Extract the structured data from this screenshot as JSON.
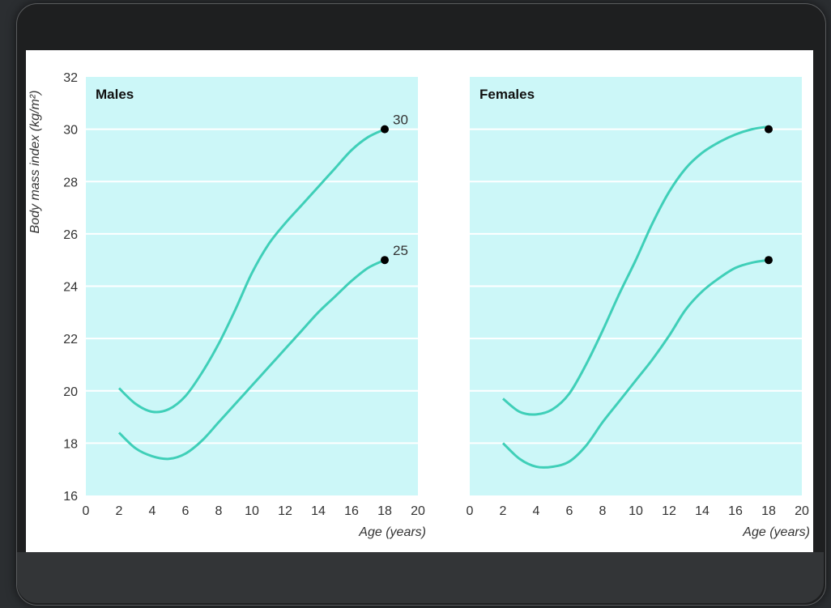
{
  "chart_data": [
    {
      "type": "line",
      "title": "Males",
      "xlabel": "Age (years)",
      "ylabel": "Body mass index (kg/m²)",
      "xlim": [
        0,
        20
      ],
      "ylim": [
        16,
        32
      ],
      "xticks": [
        "0",
        "2",
        "4",
        "6",
        "8",
        "10",
        "12",
        "14",
        "16",
        "18",
        "20"
      ],
      "yticks": [
        "16",
        "18",
        "20",
        "22",
        "24",
        "26",
        "28",
        "30",
        "32"
      ],
      "grid": true,
      "series": [
        {
          "x": [
            2,
            3,
            4,
            5,
            6,
            7,
            8,
            9,
            10,
            11,
            12,
            13,
            14,
            15,
            16,
            17,
            18
          ],
          "values": [
            20.1,
            19.5,
            19.2,
            19.3,
            19.8,
            20.7,
            21.8,
            23.1,
            24.5,
            25.6,
            26.4,
            27.1,
            27.8,
            28.5,
            29.2,
            29.7,
            30.0
          ]
        },
        {
          "x": [
            2,
            3,
            4,
            5,
            6,
            7,
            8,
            9,
            10,
            11,
            12,
            13,
            14,
            15,
            16,
            17,
            18
          ],
          "values": [
            18.4,
            17.8,
            17.5,
            17.4,
            17.6,
            18.1,
            18.8,
            19.5,
            20.2,
            20.9,
            21.6,
            22.3,
            23.0,
            23.6,
            24.2,
            24.7,
            25.0
          ]
        }
      ],
      "end_labels": [
        "30",
        "25"
      ],
      "end_points": [
        [
          18,
          30
        ],
        [
          18,
          25
        ]
      ],
      "colors": {
        "line": "#3fcfb8",
        "panel": "#ccf7f8",
        "grid": "#ffffff",
        "point": "#000000"
      }
    },
    {
      "type": "line",
      "title": "Females",
      "xlabel": "Age (years)",
      "ylabel": "",
      "xlim": [
        0,
        20
      ],
      "ylim": [
        16,
        32
      ],
      "xticks": [
        "0",
        "2",
        "4",
        "6",
        "8",
        "10",
        "12",
        "14",
        "16",
        "18",
        "20"
      ],
      "yticks": [],
      "grid": true,
      "series": [
        {
          "x": [
            2,
            3,
            4,
            5,
            6,
            7,
            8,
            9,
            10,
            11,
            12,
            13,
            14,
            15,
            16,
            17,
            18
          ],
          "values": [
            19.7,
            19.2,
            19.1,
            19.3,
            19.9,
            21.0,
            22.3,
            23.7,
            25.0,
            26.4,
            27.6,
            28.5,
            29.1,
            29.5,
            29.8,
            30.0,
            30.1
          ]
        },
        {
          "x": [
            2,
            3,
            4,
            5,
            6,
            7,
            8,
            9,
            10,
            11,
            12,
            13,
            14,
            15,
            16,
            17,
            18
          ],
          "values": [
            18.0,
            17.4,
            17.1,
            17.1,
            17.3,
            17.9,
            18.8,
            19.6,
            20.4,
            21.2,
            22.1,
            23.1,
            23.8,
            24.3,
            24.7,
            24.9,
            25.0
          ]
        }
      ],
      "end_labels": [],
      "end_points": [
        [
          18,
          30
        ],
        [
          18,
          25
        ]
      ],
      "colors": {
        "line": "#3fcfb8",
        "panel": "#ccf7f8",
        "grid": "#ffffff",
        "point": "#000000"
      }
    }
  ]
}
